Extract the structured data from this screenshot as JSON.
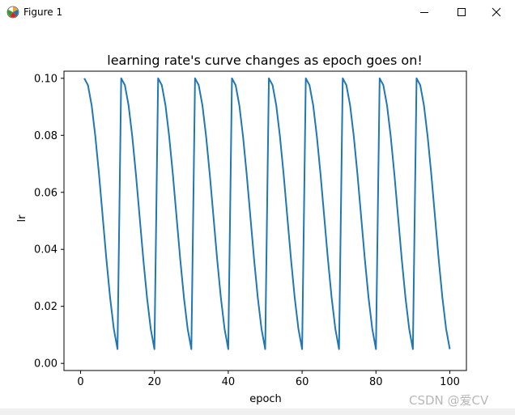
{
  "window": {
    "title": "Figure 1",
    "minimize_icon": "minimize-icon",
    "maximize_icon": "maximize-icon",
    "close_icon": "close-icon"
  },
  "watermark": "CSDN @爱CV",
  "chart_data": {
    "type": "line",
    "title": "learning rate's curve changes as epoch goes on!",
    "xlabel": "epoch",
    "ylabel": "lr",
    "xlim": [
      -4.5,
      104.5
    ],
    "ylim": [
      -0.0025,
      0.1025
    ],
    "xticks": [
      0,
      20,
      40,
      60,
      80,
      100
    ],
    "yticks": [
      0.0,
      0.02,
      0.04,
      0.06,
      0.08,
      0.1
    ],
    "xtick_labels": [
      "0",
      "20",
      "40",
      "60",
      "80",
      "100"
    ],
    "ytick_labels": [
      "0.00",
      "0.02",
      "0.04",
      "0.06",
      "0.08",
      "0.10"
    ],
    "grid": false,
    "series": [
      {
        "color": "#1f77b4",
        "x": [
          1,
          2,
          3,
          4,
          5,
          6,
          7,
          8,
          9,
          10,
          11,
          12,
          13,
          14,
          15,
          16,
          17,
          18,
          19,
          20,
          21,
          22,
          23,
          24,
          25,
          26,
          27,
          28,
          29,
          30,
          31,
          32,
          33,
          34,
          35,
          36,
          37,
          38,
          39,
          40,
          41,
          42,
          43,
          44,
          45,
          46,
          47,
          48,
          49,
          50,
          51,
          52,
          53,
          54,
          55,
          56,
          57,
          58,
          59,
          60,
          61,
          62,
          63,
          64,
          65,
          66,
          67,
          68,
          69,
          70,
          71,
          72,
          73,
          74,
          75,
          76,
          77,
          78,
          79,
          80,
          81,
          82,
          83,
          84,
          85,
          86,
          87,
          88,
          89,
          90,
          91,
          92,
          93,
          94,
          95,
          96,
          97,
          98,
          99,
          100
        ],
        "values": [
          0.1,
          0.0976,
          0.0905,
          0.0796,
          0.0662,
          0.0513,
          0.0364,
          0.023,
          0.0121,
          0.005,
          0.1,
          0.0976,
          0.0905,
          0.0796,
          0.0662,
          0.0513,
          0.0364,
          0.023,
          0.0121,
          0.005,
          0.1,
          0.0976,
          0.0905,
          0.0796,
          0.0662,
          0.0513,
          0.0364,
          0.023,
          0.0121,
          0.005,
          0.1,
          0.0976,
          0.0905,
          0.0796,
          0.0662,
          0.0513,
          0.0364,
          0.023,
          0.0121,
          0.005,
          0.1,
          0.0976,
          0.0905,
          0.0796,
          0.0662,
          0.0513,
          0.0364,
          0.023,
          0.0121,
          0.005,
          0.1,
          0.0976,
          0.0905,
          0.0796,
          0.0662,
          0.0513,
          0.0364,
          0.023,
          0.0121,
          0.005,
          0.1,
          0.0976,
          0.0905,
          0.0796,
          0.0662,
          0.0513,
          0.0364,
          0.023,
          0.0121,
          0.005,
          0.1,
          0.0976,
          0.0905,
          0.0796,
          0.0662,
          0.0513,
          0.0364,
          0.023,
          0.0121,
          0.005,
          0.1,
          0.0976,
          0.0905,
          0.0796,
          0.0662,
          0.0513,
          0.0364,
          0.023,
          0.0121,
          0.005,
          0.1,
          0.0976,
          0.0905,
          0.0796,
          0.0662,
          0.0513,
          0.0364,
          0.023,
          0.0121,
          0.005
        ]
      }
    ]
  }
}
